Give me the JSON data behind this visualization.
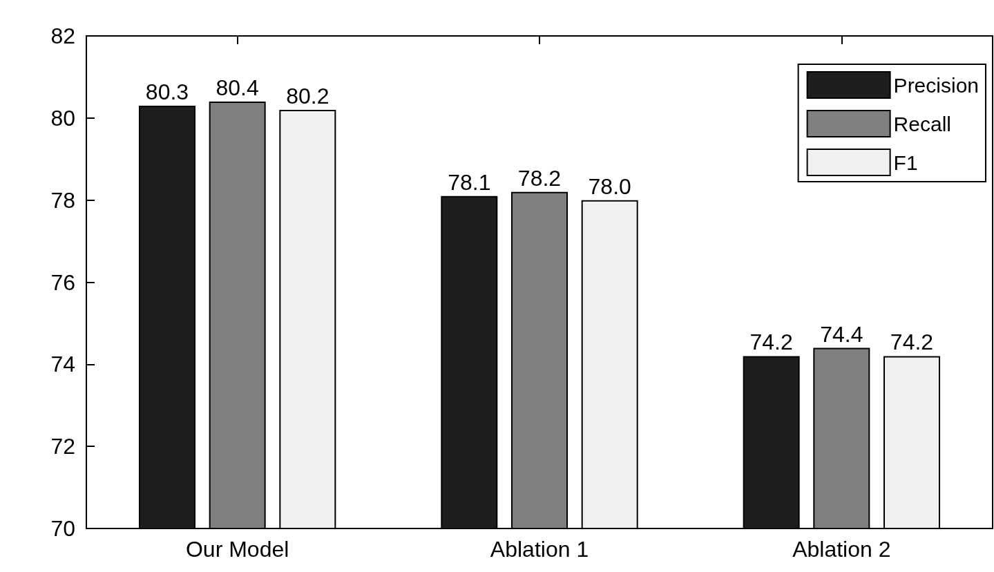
{
  "chart_data": {
    "type": "bar",
    "categories": [
      "Our Model",
      "Ablation 1",
      "Ablation 2"
    ],
    "series": [
      {
        "name": "Precision",
        "color": "#1e1e1e",
        "values": [
          80.3,
          78.1,
          74.2
        ],
        "value_labels": [
          "80.3",
          "78.1",
          "74.2"
        ]
      },
      {
        "name": "Recall",
        "color": "#808080",
        "values": [
          80.4,
          78.2,
          74.4
        ],
        "value_labels": [
          "80.4",
          "78.2",
          "74.4"
        ]
      },
      {
        "name": "F1",
        "color": "#f0f0f0",
        "values": [
          80.2,
          78.0,
          74.2
        ],
        "value_labels": [
          "80.2",
          "78.0",
          "74.2"
        ]
      }
    ],
    "ylim": [
      70,
      82
    ],
    "yticks": [
      70,
      72,
      74,
      76,
      78,
      80,
      82
    ],
    "legend": "top right"
  }
}
